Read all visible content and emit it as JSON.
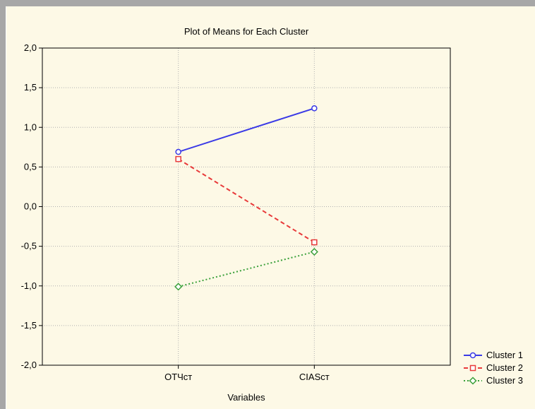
{
  "chart_data": {
    "type": "line",
    "title": "Plot of Means for Each Cluster",
    "xlabel": "Variables",
    "ylabel": "",
    "categories": [
      "ОТЧст",
      "CIASст"
    ],
    "ylim": [
      -2.0,
      2.0
    ],
    "yticks": [
      "2,0",
      "1,5",
      "1,0",
      "0,5",
      "0,0",
      "-0,5",
      "-1,0",
      "-1,5",
      "-2,0"
    ],
    "ytick_values": [
      2.0,
      1.5,
      1.0,
      0.5,
      0.0,
      -0.5,
      -1.0,
      -1.5,
      -2.0
    ],
    "grid": true,
    "legend": "bottom-right",
    "series": [
      {
        "name": "Cluster 1",
        "values": [
          0.69,
          1.24
        ],
        "color": "#3a3ae6",
        "marker": "circle",
        "dash": "solid"
      },
      {
        "name": "Cluster 2",
        "values": [
          0.6,
          -0.45
        ],
        "color": "#e83a3a",
        "marker": "square",
        "dash": "dashed"
      },
      {
        "name": "Cluster 3",
        "values": [
          -1.01,
          -0.57
        ],
        "color": "#3aa03a",
        "marker": "diamond",
        "dash": "dotted"
      }
    ]
  }
}
